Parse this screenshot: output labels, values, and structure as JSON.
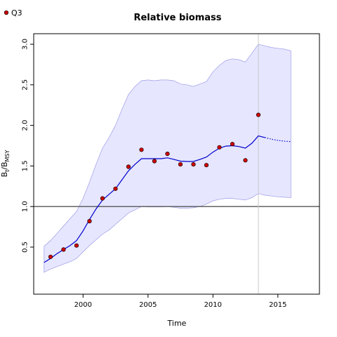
{
  "chart_data": {
    "type": "line",
    "title": "Relative biomass",
    "xlabel": "Time",
    "ylabel_main": "B",
    "ylabel_sub1": "t",
    "ylabel_mid": "/B",
    "ylabel_sub2": "MSY",
    "xlim": [
      1996.2,
      2018.2
    ],
    "ylim": [
      -0.08,
      3.13
    ],
    "x_ticks": [
      2000,
      2005,
      2010,
      2015
    ],
    "x_tick_labels": [
      "2000",
      "2005",
      "2010",
      "2015"
    ],
    "y_ticks": [
      0.5,
      1.0,
      1.5,
      2.0,
      2.5,
      3.0
    ],
    "y_tick_labels": [
      "0.5",
      "1.0",
      "1.5",
      "2.0",
      "2.5",
      "3.0"
    ],
    "reference_line_y": 1.0,
    "vertical_line_x": 2013.5,
    "legend": {
      "position": "top-left",
      "label": "Q3"
    },
    "colors": {
      "band_fill": "#e6e6ff",
      "band_edge": "#9c9ce6",
      "estimate_line": "#0000cc",
      "points_fill": "#cc0000",
      "points_edge": "#000000",
      "reference_line": "#555555",
      "vertical_line": "#c8c8c8"
    },
    "series": [
      {
        "name": "Q3",
        "kind": "points",
        "x": [
          1997.5,
          1998.5,
          1999.5,
          2000.5,
          2001.5,
          2002.5,
          2003.5,
          2004.5,
          2005.5,
          2006.5,
          2007.5,
          2008.5,
          2009.5,
          2010.5,
          2011.5,
          2012.5,
          2013.5
        ],
        "y": [
          0.38,
          0.47,
          0.52,
          0.82,
          1.1,
          1.22,
          1.49,
          1.7,
          1.56,
          1.65,
          1.52,
          1.52,
          1.51,
          1.73,
          1.77,
          1.57,
          2.13
        ]
      },
      {
        "kind": "estimate",
        "x": [
          1997.0,
          1997.5,
          1998.0,
          1998.5,
          1999.0,
          1999.5,
          2000.0,
          2000.5,
          2001.0,
          2001.5,
          2002.0,
          2002.5,
          2003.0,
          2003.5,
          2004.0,
          2004.5,
          2005.0,
          2005.5,
          2006.0,
          2006.5,
          2007.0,
          2007.5,
          2008.0,
          2008.5,
          2009.0,
          2009.5,
          2010.0,
          2010.5,
          2011.0,
          2011.5,
          2012.0,
          2012.5,
          2013.0,
          2013.5,
          2014.0
        ],
        "y": [
          0.31,
          0.36,
          0.42,
          0.47,
          0.52,
          0.58,
          0.7,
          0.84,
          0.97,
          1.08,
          1.15,
          1.22,
          1.33,
          1.44,
          1.52,
          1.59,
          1.59,
          1.59,
          1.59,
          1.6,
          1.58,
          1.56,
          1.555,
          1.555,
          1.58,
          1.61,
          1.67,
          1.72,
          1.745,
          1.75,
          1.74,
          1.72,
          1.78,
          1.87,
          1.85
        ]
      },
      {
        "kind": "forecast",
        "x": [
          2014.0,
          2014.5,
          2015.0,
          2015.5,
          2016.0
        ],
        "y": [
          1.85,
          1.83,
          1.815,
          1.805,
          1.8
        ]
      },
      {
        "kind": "ci_upper",
        "x": [
          1997.0,
          1997.5,
          1998.0,
          1998.5,
          1999.0,
          1999.5,
          2000.0,
          2000.5,
          2001.0,
          2001.5,
          2002.0,
          2002.5,
          2003.0,
          2003.5,
          2004.0,
          2004.5,
          2005.0,
          2005.5,
          2006.0,
          2006.5,
          2007.0,
          2007.5,
          2008.0,
          2008.5,
          2009.0,
          2009.5,
          2010.0,
          2010.5,
          2011.0,
          2011.5,
          2012.0,
          2012.5,
          2013.0,
          2013.5,
          2014.0,
          2014.5,
          2015.0,
          2015.5,
          2016.0
        ],
        "y": [
          0.51,
          0.58,
          0.67,
          0.76,
          0.85,
          0.94,
          1.1,
          1.3,
          1.52,
          1.72,
          1.85,
          2.0,
          2.2,
          2.38,
          2.48,
          2.55,
          2.56,
          2.55,
          2.56,
          2.56,
          2.55,
          2.51,
          2.5,
          2.48,
          2.51,
          2.54,
          2.66,
          2.74,
          2.8,
          2.82,
          2.81,
          2.78,
          2.89,
          3.0,
          2.98,
          2.96,
          2.95,
          2.94,
          2.92
        ]
      },
      {
        "kind": "ci_lower",
        "x": [
          1997.0,
          1997.5,
          1998.0,
          1998.5,
          1999.0,
          1999.5,
          2000.0,
          2000.5,
          2001.0,
          2001.5,
          2002.0,
          2002.5,
          2003.0,
          2003.5,
          2004.0,
          2004.5,
          2005.0,
          2005.5,
          2006.0,
          2006.5,
          2007.0,
          2007.5,
          2008.0,
          2008.5,
          2009.0,
          2009.5,
          2010.0,
          2010.5,
          2011.0,
          2011.5,
          2012.0,
          2012.5,
          2013.0,
          2013.5,
          2014.0,
          2014.5,
          2015.0,
          2015.5,
          2016.0
        ],
        "y": [
          0.19,
          0.23,
          0.26,
          0.29,
          0.32,
          0.36,
          0.44,
          0.52,
          0.59,
          0.66,
          0.71,
          0.78,
          0.85,
          0.92,
          0.96,
          1.0,
          0.995,
          0.995,
          0.995,
          1.0,
          0.99,
          0.98,
          0.98,
          0.985,
          1.0,
          1.03,
          1.07,
          1.09,
          1.1,
          1.1,
          1.09,
          1.08,
          1.11,
          1.16,
          1.14,
          1.13,
          1.12,
          1.115,
          1.11
        ]
      }
    ]
  }
}
